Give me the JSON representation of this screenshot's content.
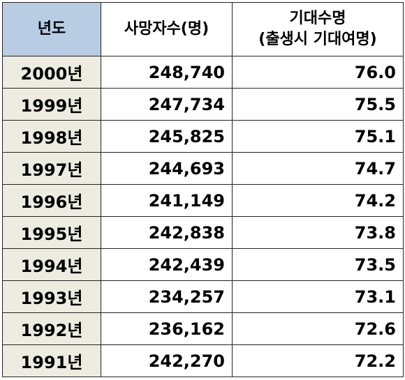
{
  "headers": {
    "year": "년도",
    "deaths": "사망자수(명)",
    "life_line1": "기대수명",
    "life_line2": "(출생시 기대여명)"
  },
  "rows": [
    {
      "year": "2000년",
      "deaths": "248,740",
      "life": "76.0"
    },
    {
      "year": "1999년",
      "deaths": "247,734",
      "life": "75.5"
    },
    {
      "year": "1998년",
      "deaths": "245,825",
      "life": "75.1"
    },
    {
      "year": "1997년",
      "deaths": "244,693",
      "life": "74.7"
    },
    {
      "year": "1996년",
      "deaths": "241,149",
      "life": "74.2"
    },
    {
      "year": "1995년",
      "deaths": "242,838",
      "life": "73.8"
    },
    {
      "year": "1994년",
      "deaths": "242,439",
      "life": "73.5"
    },
    {
      "year": "1993년",
      "deaths": "234,257",
      "life": "73.1"
    },
    {
      "year": "1992년",
      "deaths": "236,162",
      "life": "72.6"
    },
    {
      "year": "1991년",
      "deaths": "242,270",
      "life": "72.2"
    }
  ],
  "colors": {
    "year_header_bg": "#b8cce4",
    "year_cell_bg": "#eeece1",
    "border": "#222222"
  }
}
